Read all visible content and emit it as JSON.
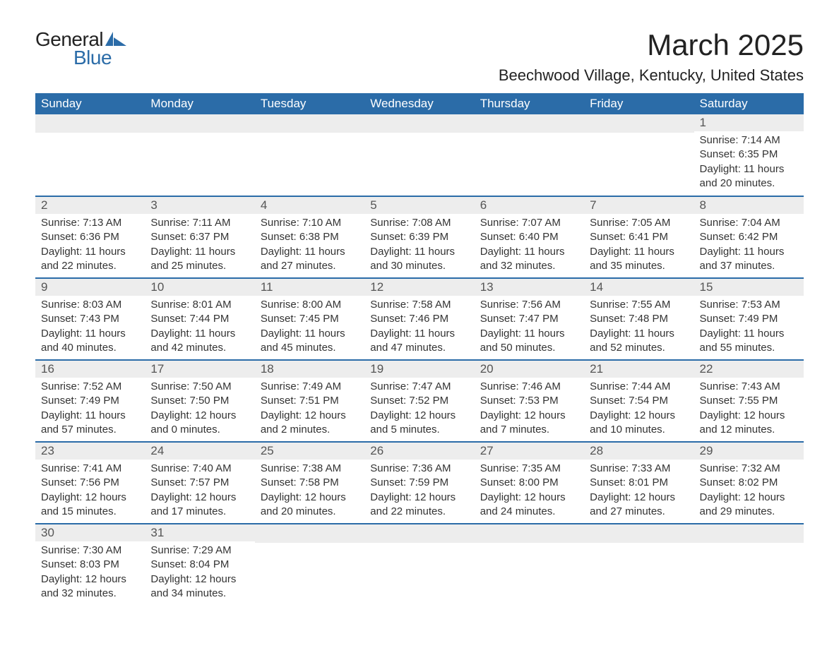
{
  "logo": {
    "general": "General",
    "blue": "Blue",
    "shape_color": "#2b6ca8"
  },
  "title": "March 2025",
  "location": "Beechwood Village, Kentucky, United States",
  "colors": {
    "header_bg": "#2b6ca8",
    "header_text": "#ffffff",
    "daynum_bg": "#ededed",
    "border": "#2b6ca8",
    "text": "#333333"
  },
  "weekdays": [
    "Sunday",
    "Monday",
    "Tuesday",
    "Wednesday",
    "Thursday",
    "Friday",
    "Saturday"
  ],
  "weeks": [
    [
      null,
      null,
      null,
      null,
      null,
      null,
      {
        "n": "1",
        "sr": "Sunrise: 7:14 AM",
        "ss": "Sunset: 6:35 PM",
        "d1": "Daylight: 11 hours",
        "d2": "and 20 minutes."
      }
    ],
    [
      {
        "n": "2",
        "sr": "Sunrise: 7:13 AM",
        "ss": "Sunset: 6:36 PM",
        "d1": "Daylight: 11 hours",
        "d2": "and 22 minutes."
      },
      {
        "n": "3",
        "sr": "Sunrise: 7:11 AM",
        "ss": "Sunset: 6:37 PM",
        "d1": "Daylight: 11 hours",
        "d2": "and 25 minutes."
      },
      {
        "n": "4",
        "sr": "Sunrise: 7:10 AM",
        "ss": "Sunset: 6:38 PM",
        "d1": "Daylight: 11 hours",
        "d2": "and 27 minutes."
      },
      {
        "n": "5",
        "sr": "Sunrise: 7:08 AM",
        "ss": "Sunset: 6:39 PM",
        "d1": "Daylight: 11 hours",
        "d2": "and 30 minutes."
      },
      {
        "n": "6",
        "sr": "Sunrise: 7:07 AM",
        "ss": "Sunset: 6:40 PM",
        "d1": "Daylight: 11 hours",
        "d2": "and 32 minutes."
      },
      {
        "n": "7",
        "sr": "Sunrise: 7:05 AM",
        "ss": "Sunset: 6:41 PM",
        "d1": "Daylight: 11 hours",
        "d2": "and 35 minutes."
      },
      {
        "n": "8",
        "sr": "Sunrise: 7:04 AM",
        "ss": "Sunset: 6:42 PM",
        "d1": "Daylight: 11 hours",
        "d2": "and 37 minutes."
      }
    ],
    [
      {
        "n": "9",
        "sr": "Sunrise: 8:03 AM",
        "ss": "Sunset: 7:43 PM",
        "d1": "Daylight: 11 hours",
        "d2": "and 40 minutes."
      },
      {
        "n": "10",
        "sr": "Sunrise: 8:01 AM",
        "ss": "Sunset: 7:44 PM",
        "d1": "Daylight: 11 hours",
        "d2": "and 42 minutes."
      },
      {
        "n": "11",
        "sr": "Sunrise: 8:00 AM",
        "ss": "Sunset: 7:45 PM",
        "d1": "Daylight: 11 hours",
        "d2": "and 45 minutes."
      },
      {
        "n": "12",
        "sr": "Sunrise: 7:58 AM",
        "ss": "Sunset: 7:46 PM",
        "d1": "Daylight: 11 hours",
        "d2": "and 47 minutes."
      },
      {
        "n": "13",
        "sr": "Sunrise: 7:56 AM",
        "ss": "Sunset: 7:47 PM",
        "d1": "Daylight: 11 hours",
        "d2": "and 50 minutes."
      },
      {
        "n": "14",
        "sr": "Sunrise: 7:55 AM",
        "ss": "Sunset: 7:48 PM",
        "d1": "Daylight: 11 hours",
        "d2": "and 52 minutes."
      },
      {
        "n": "15",
        "sr": "Sunrise: 7:53 AM",
        "ss": "Sunset: 7:49 PM",
        "d1": "Daylight: 11 hours",
        "d2": "and 55 minutes."
      }
    ],
    [
      {
        "n": "16",
        "sr": "Sunrise: 7:52 AM",
        "ss": "Sunset: 7:49 PM",
        "d1": "Daylight: 11 hours",
        "d2": "and 57 minutes."
      },
      {
        "n": "17",
        "sr": "Sunrise: 7:50 AM",
        "ss": "Sunset: 7:50 PM",
        "d1": "Daylight: 12 hours",
        "d2": "and 0 minutes."
      },
      {
        "n": "18",
        "sr": "Sunrise: 7:49 AM",
        "ss": "Sunset: 7:51 PM",
        "d1": "Daylight: 12 hours",
        "d2": "and 2 minutes."
      },
      {
        "n": "19",
        "sr": "Sunrise: 7:47 AM",
        "ss": "Sunset: 7:52 PM",
        "d1": "Daylight: 12 hours",
        "d2": "and 5 minutes."
      },
      {
        "n": "20",
        "sr": "Sunrise: 7:46 AM",
        "ss": "Sunset: 7:53 PM",
        "d1": "Daylight: 12 hours",
        "d2": "and 7 minutes."
      },
      {
        "n": "21",
        "sr": "Sunrise: 7:44 AM",
        "ss": "Sunset: 7:54 PM",
        "d1": "Daylight: 12 hours",
        "d2": "and 10 minutes."
      },
      {
        "n": "22",
        "sr": "Sunrise: 7:43 AM",
        "ss": "Sunset: 7:55 PM",
        "d1": "Daylight: 12 hours",
        "d2": "and 12 minutes."
      }
    ],
    [
      {
        "n": "23",
        "sr": "Sunrise: 7:41 AM",
        "ss": "Sunset: 7:56 PM",
        "d1": "Daylight: 12 hours",
        "d2": "and 15 minutes."
      },
      {
        "n": "24",
        "sr": "Sunrise: 7:40 AM",
        "ss": "Sunset: 7:57 PM",
        "d1": "Daylight: 12 hours",
        "d2": "and 17 minutes."
      },
      {
        "n": "25",
        "sr": "Sunrise: 7:38 AM",
        "ss": "Sunset: 7:58 PM",
        "d1": "Daylight: 12 hours",
        "d2": "and 20 minutes."
      },
      {
        "n": "26",
        "sr": "Sunrise: 7:36 AM",
        "ss": "Sunset: 7:59 PM",
        "d1": "Daylight: 12 hours",
        "d2": "and 22 minutes."
      },
      {
        "n": "27",
        "sr": "Sunrise: 7:35 AM",
        "ss": "Sunset: 8:00 PM",
        "d1": "Daylight: 12 hours",
        "d2": "and 24 minutes."
      },
      {
        "n": "28",
        "sr": "Sunrise: 7:33 AM",
        "ss": "Sunset: 8:01 PM",
        "d1": "Daylight: 12 hours",
        "d2": "and 27 minutes."
      },
      {
        "n": "29",
        "sr": "Sunrise: 7:32 AM",
        "ss": "Sunset: 8:02 PM",
        "d1": "Daylight: 12 hours",
        "d2": "and 29 minutes."
      }
    ],
    [
      {
        "n": "30",
        "sr": "Sunrise: 7:30 AM",
        "ss": "Sunset: 8:03 PM",
        "d1": "Daylight: 12 hours",
        "d2": "and 32 minutes."
      },
      {
        "n": "31",
        "sr": "Sunrise: 7:29 AM",
        "ss": "Sunset: 8:04 PM",
        "d1": "Daylight: 12 hours",
        "d2": "and 34 minutes."
      },
      null,
      null,
      null,
      null,
      null
    ]
  ]
}
